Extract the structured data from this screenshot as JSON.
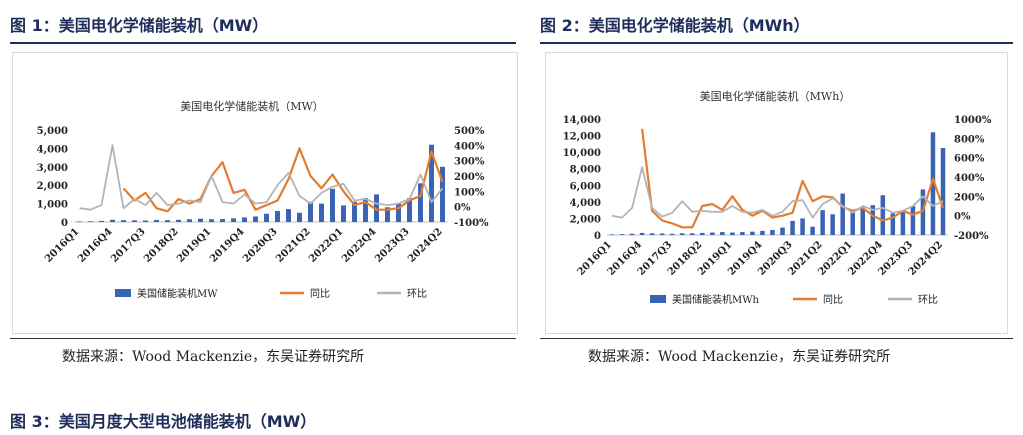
{
  "figures": [
    {
      "label": "图 1：美国电化学储能装机（MW）",
      "source": "数据来源：Wood Mackenzie，东吴证券研究所"
    },
    {
      "label": "图 2：美国电化学储能装机（MWh）",
      "source": "数据来源：Wood Mackenzie，东吴证券研究所"
    },
    {
      "label": "图 3：美国月度大型电池储能装机（MW）"
    }
  ],
  "colors": {
    "bar": "#3a63b4",
    "yoy": "#e57b2c",
    "qoq": "#b4b4b4",
    "heading": "#1f2d5a"
  },
  "chart_data": [
    {
      "type": "bar",
      "title": "美国电化学储能装机（MW）",
      "categories": [
        "2016Q1",
        "2016Q2",
        "2016Q3",
        "2016Q4",
        "2017Q1",
        "2017Q2",
        "2017Q3",
        "2017Q4",
        "2018Q1",
        "2018Q2",
        "2018Q3",
        "2018Q4",
        "2019Q1",
        "2019Q2",
        "2019Q3",
        "2019Q4",
        "2020Q1",
        "2020Q2",
        "2020Q3",
        "2020Q4",
        "2021Q1",
        "2021Q2",
        "2021Q3",
        "2021Q4",
        "2022Q1",
        "2022Q2",
        "2022Q3",
        "2022Q4",
        "2023Q1",
        "2023Q2",
        "2023Q3",
        "2023Q4",
        "2024Q1",
        "2024Q2"
      ],
      "tick_labels": [
        "2016Q1",
        "2016Q4",
        "2017Q3",
        "2018Q2",
        "2019Q1",
        "2019Q4",
        "2020Q3",
        "2021Q2",
        "2022Q1",
        "2022Q4",
        "2023Q3",
        "2024Q2"
      ],
      "y_left": {
        "ticks": [
          "0",
          "1,000",
          "2,000",
          "3,000",
          "4,000",
          "5,000"
        ],
        "min": 0,
        "max": 5000
      },
      "y_right": {
        "ticks": [
          "-100%",
          "0%",
          "100%",
          "200%",
          "300%",
          "400%",
          "500%"
        ],
        "min": -100,
        "max": 500
      },
      "series": [
        {
          "name": "美国储能装机MW",
          "kind": "bar",
          "axis": "left",
          "values": [
            30,
            40,
            60,
            120,
            100,
            90,
            80,
            110,
            100,
            120,
            150,
            180,
            150,
            160,
            200,
            250,
            300,
            450,
            600,
            700,
            500,
            1100,
            1000,
            1800,
            900,
            1100,
            1300,
            1500,
            800,
            1000,
            1300,
            2100,
            4200,
            3000
          ]
        },
        {
          "name": "同比",
          "kind": "line",
          "axis": "right",
          "values": [
            null,
            null,
            null,
            null,
            120,
            40,
            90,
            -10,
            -30,
            50,
            20,
            50,
            200,
            290,
            90,
            110,
            -20,
            10,
            40,
            180,
            380,
            200,
            120,
            210,
            100,
            10,
            30,
            -20,
            -20,
            -10,
            40,
            70,
            360,
            160
          ]
        },
        {
          "name": "环比",
          "kind": "line",
          "axis": "right",
          "values": [
            -10,
            -20,
            10,
            400,
            -10,
            50,
            10,
            90,
            10,
            20,
            40,
            30,
            200,
            30,
            20,
            80,
            20,
            30,
            140,
            220,
            70,
            20,
            90,
            130,
            150,
            40,
            50,
            20,
            10,
            20,
            50,
            210,
            30,
            120
          ]
        }
      ],
      "legend": "bottom"
    },
    {
      "type": "bar",
      "title": "美国电化学储能装机（MWh）",
      "categories": [
        "2016Q1",
        "2016Q2",
        "2016Q3",
        "2016Q4",
        "2017Q1",
        "2017Q2",
        "2017Q3",
        "2017Q4",
        "2018Q1",
        "2018Q2",
        "2018Q3",
        "2018Q4",
        "2019Q1",
        "2019Q2",
        "2019Q3",
        "2019Q4",
        "2020Q1",
        "2020Q2",
        "2020Q3",
        "2020Q4",
        "2021Q1",
        "2021Q2",
        "2021Q3",
        "2021Q4",
        "2022Q1",
        "2022Q2",
        "2022Q3",
        "2022Q4",
        "2023Q1",
        "2023Q2",
        "2023Q3",
        "2023Q4",
        "2024Q1",
        "2024Q2"
      ],
      "tick_labels": [
        "2016Q1",
        "2016Q4",
        "2017Q3",
        "2018Q2",
        "2019Q1",
        "2019Q4",
        "2020Q3",
        "2021Q2",
        "2022Q1",
        "2022Q4",
        "2023Q3",
        "2024Q2"
      ],
      "y_left": {
        "ticks": [
          "0",
          "2,000",
          "4,000",
          "6,000",
          "8,000",
          "10,000",
          "12,000",
          "14,000"
        ],
        "min": 0,
        "max": 14000
      },
      "y_right": {
        "ticks": [
          "-200%",
          "0%",
          "200%",
          "400%",
          "600%",
          "800%",
          "1000%"
        ],
        "min": -200,
        "max": 1000
      },
      "series": [
        {
          "name": "美国储能装机MWh",
          "kind": "bar",
          "axis": "left",
          "values": [
            80,
            100,
            150,
            250,
            200,
            180,
            150,
            200,
            200,
            250,
            300,
            350,
            300,
            350,
            400,
            500,
            600,
            900,
            1700,
            2000,
            1000,
            3000,
            2500,
            5000,
            2800,
            3200,
            3600,
            4800,
            2600,
            2900,
            3500,
            5500,
            12400,
            10500
          ]
        },
        {
          "name": "同比",
          "kind": "line",
          "axis": "right",
          "values": [
            null,
            null,
            null,
            900,
            50,
            -50,
            -80,
            -120,
            -120,
            100,
            120,
            60,
            200,
            60,
            0,
            50,
            -20,
            0,
            30,
            360,
            150,
            200,
            190,
            90,
            50,
            80,
            0,
            -50,
            -20,
            50,
            10,
            50,
            380,
            80
          ]
        },
        {
          "name": "环比",
          "kind": "line",
          "axis": "right",
          "values": [
            0,
            -20,
            80,
            500,
            80,
            -10,
            30,
            150,
            40,
            50,
            40,
            40,
            100,
            40,
            30,
            60,
            0,
            40,
            150,
            160,
            -20,
            120,
            180,
            100,
            30,
            100,
            60,
            80,
            30,
            50,
            100,
            200,
            100,
            150
          ]
        }
      ],
      "legend": "bottom"
    }
  ]
}
